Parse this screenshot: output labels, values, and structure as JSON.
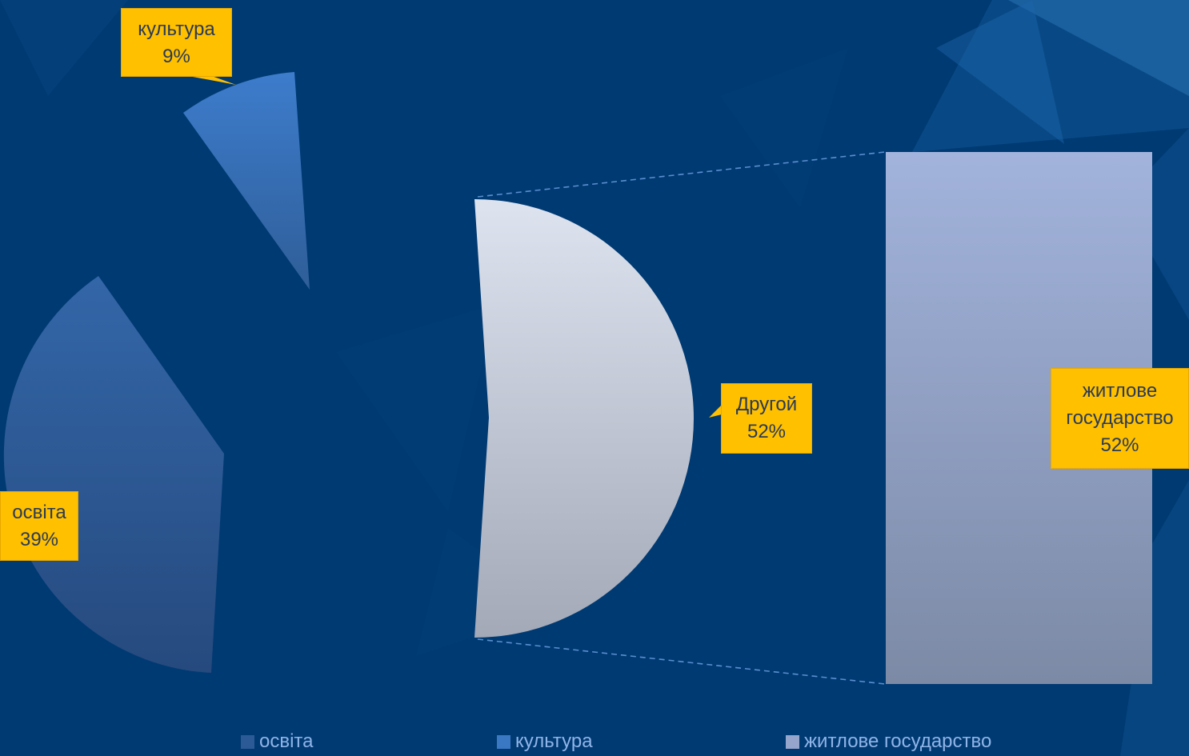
{
  "chart_data": {
    "type": "pie",
    "subtype": "bar-of-pie",
    "slices": [
      {
        "label": "освіта",
        "value": 39,
        "pct_label": "39%",
        "color": "#2c5a96"
      },
      {
        "label": "культура",
        "value": 9,
        "pct_label": "9%",
        "color": "#3a78c4"
      },
      {
        "label": "Другой",
        "value": 52,
        "pct_label": "52%",
        "color": "#c4cad8"
      }
    ],
    "bar_segments": [
      {
        "label": "житлове государство",
        "label_lines": [
          "житлове",
          "государство"
        ],
        "value": 52,
        "pct_label": "52%",
        "color": "#8e9ec2"
      }
    ],
    "legend": [
      {
        "label": "освіта",
        "color": "#2c5a96"
      },
      {
        "label": "культура",
        "color": "#3a78c4"
      },
      {
        "label": "житлове государство",
        "color": "#95a5cc"
      }
    ],
    "legend_position": "bottom"
  }
}
